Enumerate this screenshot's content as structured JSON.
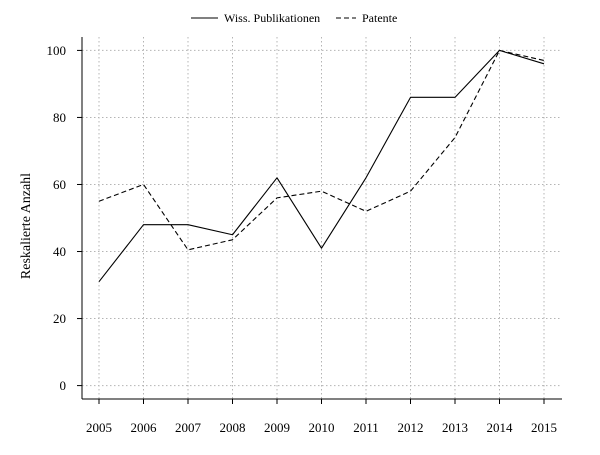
{
  "chart_data": {
    "type": "line",
    "title": "",
    "xlabel": "",
    "ylabel": "Reskalierte Anzahl",
    "categories": [
      "2005",
      "2006",
      "2007",
      "2008",
      "2009",
      "2010",
      "2011",
      "2012",
      "2013",
      "2014",
      "2015"
    ],
    "yticks": [
      0,
      20,
      40,
      60,
      80,
      100
    ],
    "ylim": [
      -4,
      104
    ],
    "grid": true,
    "legend_position": "top-center",
    "series": [
      {
        "name": "Wiss. Publikationen",
        "line_style": "solid",
        "color": "#000000",
        "values": [
          31,
          48,
          48,
          45,
          62,
          41,
          62,
          86,
          86,
          100,
          96
        ]
      },
      {
        "name": "Patente",
        "line_style": "dashed",
        "color": "#000000",
        "values": [
          55,
          60,
          40.5,
          43.5,
          56,
          58,
          52,
          58,
          74,
          100,
          97
        ]
      }
    ],
    "grid_color": "#b4b4b4"
  }
}
